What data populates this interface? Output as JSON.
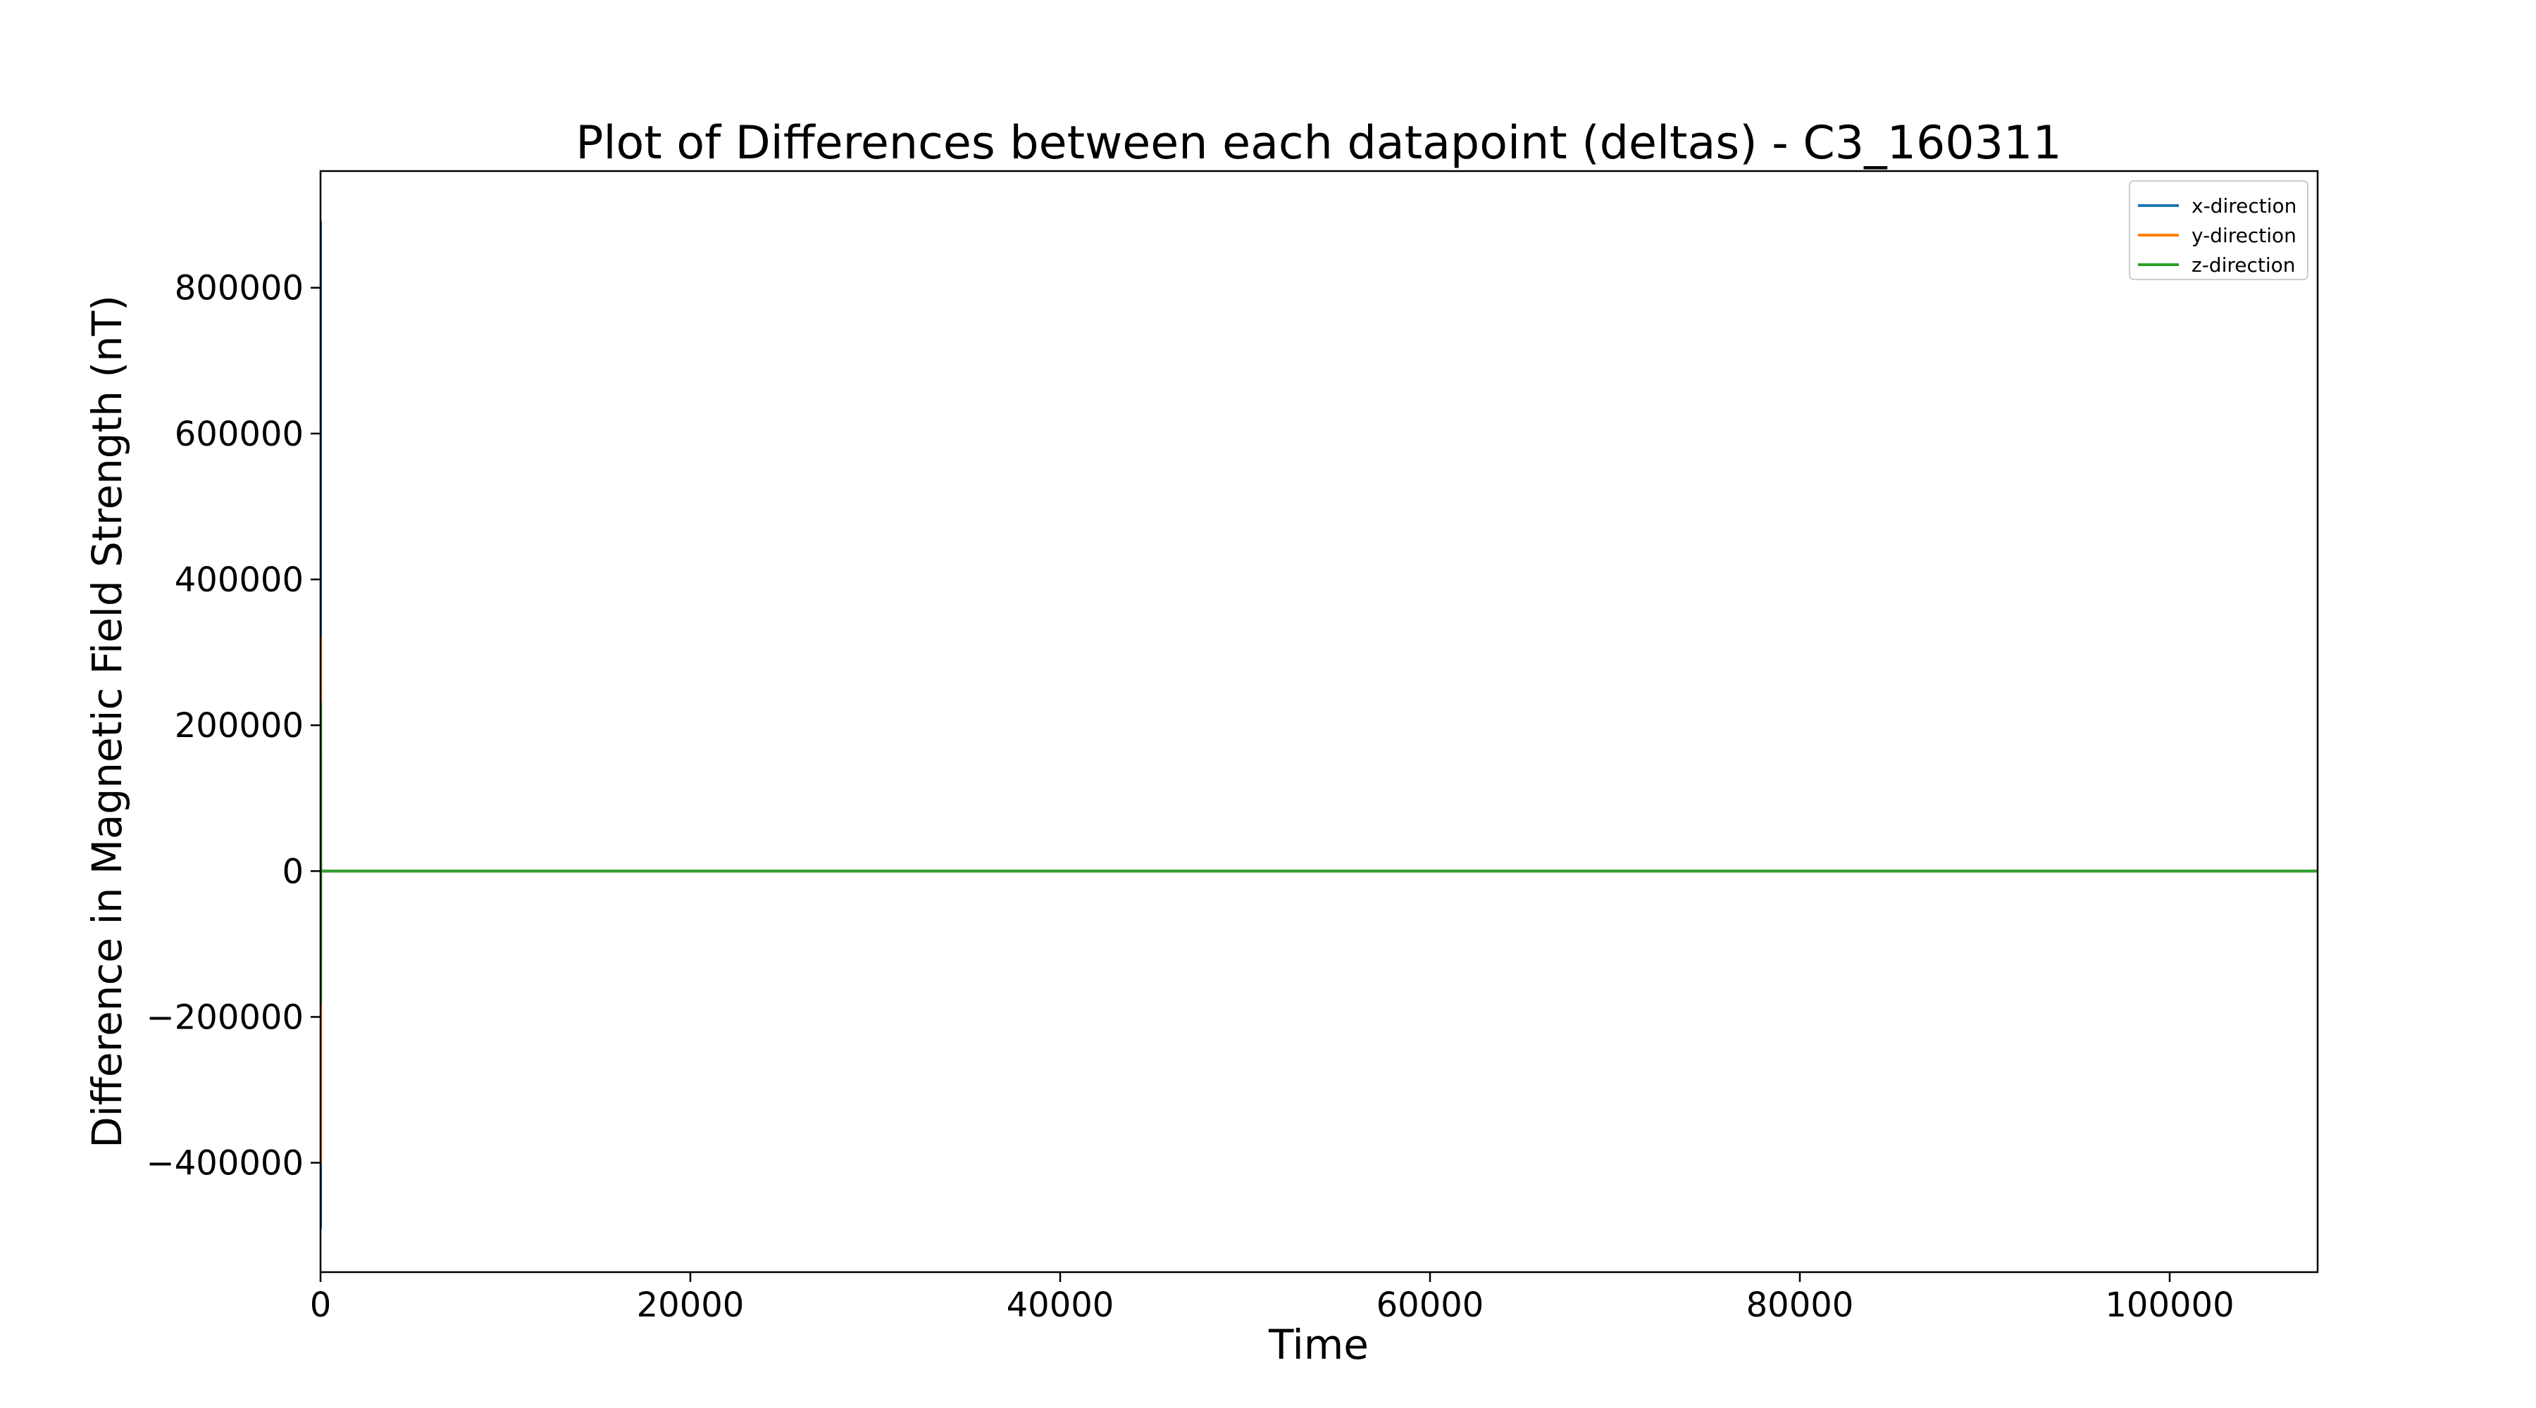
{
  "chart_data": {
    "type": "line",
    "title": "Plot of Differences between each datapoint (deltas) - C3_160311",
    "xlabel": "Time",
    "ylabel": "Difference in Magnetic Field Strength (nT)",
    "xlim": [
      0,
      108000
    ],
    "ylim": [
      -550000,
      960000
    ],
    "xticks": [
      0,
      20000,
      40000,
      60000,
      80000,
      100000
    ],
    "yticks": [
      -400000,
      -200000,
      0,
      200000,
      400000,
      600000,
      800000
    ],
    "xtick_labels": [
      "0",
      "20000",
      "40000",
      "60000",
      "80000",
      "100000"
    ],
    "ytick_labels": [
      "−400000",
      "−200000",
      "0",
      "200000",
      "400000",
      "600000",
      "800000"
    ],
    "grid": false,
    "legend": "top-right",
    "series": [
      {
        "name": "x-direction",
        "color": "#1f77b4",
        "x": [
          0,
          2,
          4,
          6,
          8,
          10,
          12,
          20,
          108000
        ],
        "y": [
          0,
          890000,
          -490000,
          320000,
          0,
          5000,
          -3000,
          0,
          0
        ]
      },
      {
        "name": "y-direction",
        "color": "#ff7f0e",
        "x": [
          0,
          3,
          5,
          7,
          9,
          11,
          20,
          108000
        ],
        "y": [
          0,
          320000,
          -400000,
          200000,
          -120000,
          0,
          0,
          0
        ]
      },
      {
        "name": "z-direction",
        "color": "#2ca02c",
        "x": [
          0,
          4,
          6,
          8,
          10,
          20,
          108000
        ],
        "y": [
          0,
          230000,
          -180000,
          100000,
          0,
          0,
          0
        ]
      }
    ]
  }
}
